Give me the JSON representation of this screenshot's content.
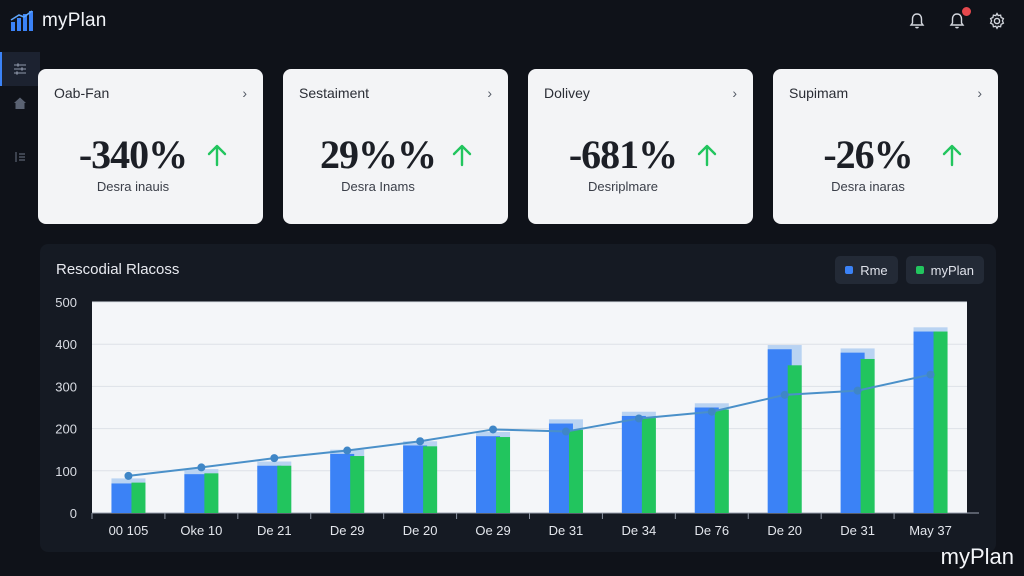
{
  "app": {
    "name": "myPlan"
  },
  "header": {
    "icons": [
      "notification-bell-icon",
      "notification-bell-alert-icon",
      "settings-gear-icon"
    ]
  },
  "sidebar": {
    "items": [
      {
        "icon": "sliders-icon",
        "active": true
      },
      {
        "icon": "home-icon",
        "active": false
      },
      {
        "icon": "list-icon",
        "active": false
      }
    ]
  },
  "cards": [
    {
      "title": "Oab-Fan",
      "value": "-340%",
      "subtitle": "Desra inauis",
      "trend": "up"
    },
    {
      "title": "Sestaiment",
      "value": "29%%",
      "subtitle": "Desra Inams",
      "trend": "up"
    },
    {
      "title": "Dolivey",
      "value": "-681%",
      "subtitle": "Desriplmare",
      "trend": "up"
    },
    {
      "title": "Supimam",
      "value": "-26%",
      "subtitle": "Desra inaras",
      "trend": "up"
    }
  ],
  "panel": {
    "title": "Rescodial Rlacoss",
    "legend": [
      {
        "label": "Rme",
        "color": "#3b82f6"
      },
      {
        "label": "myPlan",
        "color": "#22c55e"
      }
    ]
  },
  "chart_data": {
    "type": "bar",
    "categories": [
      "00 105",
      "Oke 10",
      "De 21",
      "De 29",
      "De 20",
      "Oe 29",
      "De 31",
      "De 34",
      "De 76",
      "De 20",
      "De 31",
      "May 37"
    ],
    "ylim": [
      0,
      500
    ],
    "yticks": [
      0,
      100,
      200,
      300,
      400,
      500
    ],
    "grid": true,
    "legend_position": "top-right",
    "series": [
      {
        "name": "Rme",
        "type": "bar",
        "values": [
          70,
          92,
          112,
          140,
          160,
          182,
          212,
          230,
          250,
          388,
          380,
          430
        ],
        "color": "#3b82f6"
      },
      {
        "name": "myPlan",
        "type": "bar",
        "values": [
          72,
          94,
          112,
          135,
          158,
          180,
          197,
          225,
          245,
          350,
          365,
          430
        ],
        "color": "#22c55e"
      },
      {
        "type": "line",
        "values": [
          88,
          108,
          130,
          148,
          170,
          198,
          193,
          224,
          240,
          280,
          290,
          328
        ],
        "color": "#4a90c9"
      }
    ]
  },
  "watermark": "myPlan"
}
